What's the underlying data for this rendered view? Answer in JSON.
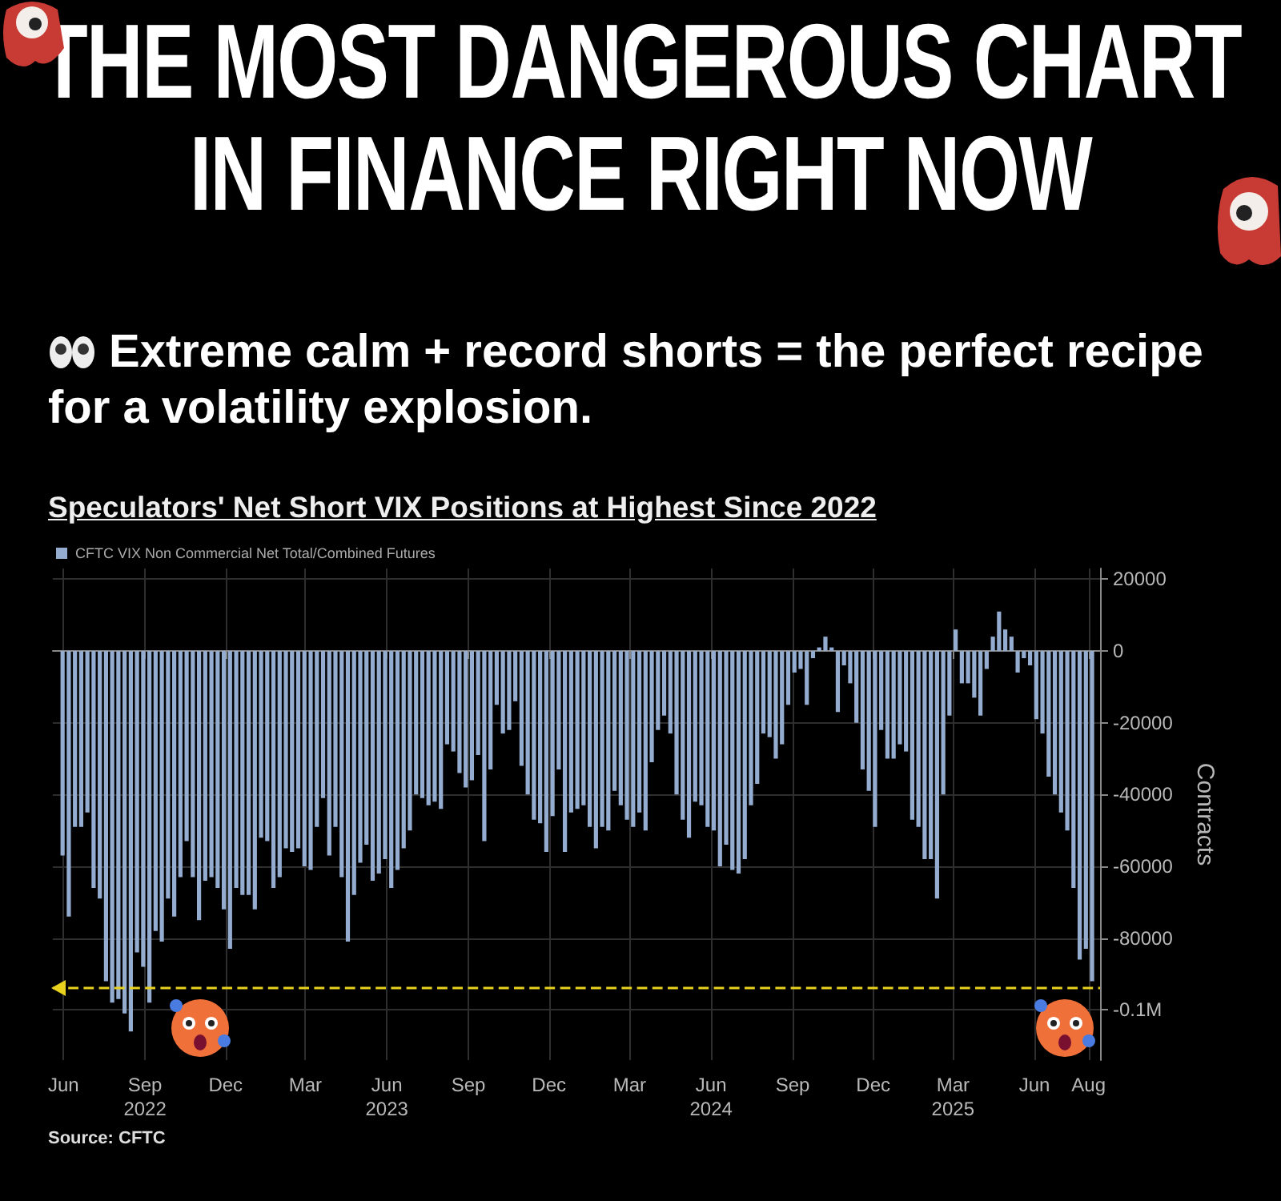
{
  "chart_data": {
    "type": "bar",
    "title": "THE MOST DANGEROUS CHART IN FINANCE RIGHT NOW",
    "subtitle": "Extreme calm + record shorts = the perfect recipe for a volatility explosion.",
    "ylabel": "Contracts",
    "annotations": [
      "Speculators' Net Short VIX Positions at Highest Since 2022",
      "Source: CFTC"
    ],
    "x": [
      "2022-05-31",
      "2022-06-07",
      "2022-06-14",
      "2022-06-21",
      "2022-06-28",
      "2022-07-05",
      "2022-07-12",
      "2022-07-19",
      "2022-07-26",
      "2022-08-02",
      "2022-08-09",
      "2022-08-16",
      "2022-08-23",
      "2022-08-30",
      "2022-09-06",
      "2022-09-13",
      "2022-09-20",
      "2022-09-27",
      "2022-10-04",
      "2022-10-11",
      "2022-10-18",
      "2022-10-25",
      "2022-11-01",
      "2022-11-08",
      "2022-11-15",
      "2022-11-22",
      "2022-11-29",
      "2022-12-06",
      "2022-12-13",
      "2022-12-20",
      "2022-12-27",
      "2023-01-03",
      "2023-01-10",
      "2023-01-17",
      "2023-01-24",
      "2023-01-31",
      "2023-02-07",
      "2023-02-14",
      "2023-02-21",
      "2023-02-28",
      "2023-03-07",
      "2023-03-14",
      "2023-03-21",
      "2023-03-28",
      "2023-04-04",
      "2023-04-11",
      "2023-04-18",
      "2023-04-25",
      "2023-05-02",
      "2023-05-09",
      "2023-05-16",
      "2023-05-23",
      "2023-05-30",
      "2023-06-06",
      "2023-06-13",
      "2023-06-20",
      "2023-06-27",
      "2023-07-04",
      "2023-07-11",
      "2023-07-18",
      "2023-07-25",
      "2023-08-01",
      "2023-08-08",
      "2023-08-15",
      "2023-08-22",
      "2023-08-29",
      "2023-09-05",
      "2023-09-12",
      "2023-09-19",
      "2023-09-26",
      "2023-10-03",
      "2023-10-10",
      "2023-10-17",
      "2023-10-24",
      "2023-10-31",
      "2023-11-07",
      "2023-11-14",
      "2023-11-21",
      "2023-11-28",
      "2023-12-05",
      "2023-12-12",
      "2023-12-19",
      "2023-12-26",
      "2024-01-02",
      "2024-01-09",
      "2024-01-16",
      "2024-01-23",
      "2024-01-30",
      "2024-02-06",
      "2024-02-13",
      "2024-02-20",
      "2024-02-27",
      "2024-03-05",
      "2024-03-12",
      "2024-03-19",
      "2024-03-26",
      "2024-04-02",
      "2024-04-09",
      "2024-04-16",
      "2024-04-23",
      "2024-04-30",
      "2024-05-07",
      "2024-05-14",
      "2024-05-21",
      "2024-05-28",
      "2024-06-04",
      "2024-06-11",
      "2024-06-18",
      "2024-06-25",
      "2024-07-02",
      "2024-07-09",
      "2024-07-16",
      "2024-07-23",
      "2024-07-30",
      "2024-08-06",
      "2024-08-13",
      "2024-08-20",
      "2024-08-27",
      "2024-09-03",
      "2024-09-10",
      "2024-09-17",
      "2024-09-24",
      "2024-10-01",
      "2024-10-08",
      "2024-10-15",
      "2024-10-22",
      "2024-10-29",
      "2024-11-05",
      "2024-11-12",
      "2024-11-19",
      "2024-11-26",
      "2024-12-03",
      "2024-12-10",
      "2024-12-17",
      "2024-12-24",
      "2024-12-31",
      "2025-01-07",
      "2025-01-14",
      "2025-01-21",
      "2025-01-28",
      "2025-02-04",
      "2025-02-11",
      "2025-02-18",
      "2025-02-25",
      "2025-03-04",
      "2025-03-11",
      "2025-03-18",
      "2025-03-25",
      "2025-04-01",
      "2025-04-08",
      "2025-04-15",
      "2025-04-22",
      "2025-04-29",
      "2025-05-06",
      "2025-05-13",
      "2025-05-20",
      "2025-05-27",
      "2025-06-03",
      "2025-06-10",
      "2025-06-17",
      "2025-06-24",
      "2025-07-01",
      "2025-07-08",
      "2025-07-15",
      "2025-07-22",
      "2025-07-29",
      "2025-08-05"
    ],
    "series": [
      {
        "name": "CFTC VIX Non Commercial Net Total/Combined Futures",
        "color": "#93acd0",
        "values": [
          -57000,
          -74000,
          -49000,
          -49000,
          -45000,
          -66000,
          -69000,
          -92000,
          -98000,
          -97000,
          -101000,
          -106000,
          -84000,
          -88000,
          -98000,
          -78000,
          -81000,
          -69000,
          -74000,
          -63000,
          -53000,
          -63000,
          -75000,
          -64000,
          -63000,
          -66000,
          -72000,
          -83000,
          -66000,
          -68000,
          -68000,
          -72000,
          -52000,
          -53000,
          -66000,
          -63000,
          -55000,
          -56000,
          -55000,
          -60000,
          -61000,
          -49000,
          -41000,
          -57000,
          -49000,
          -63000,
          -81000,
          -68000,
          -59000,
          -54000,
          -64000,
          -62000,
          -58000,
          -66000,
          -61000,
          -55000,
          -50000,
          -40000,
          -41000,
          -43000,
          -42000,
          -44000,
          -26000,
          -28000,
          -34000,
          -38000,
          -36000,
          -29000,
          -53000,
          -33000,
          -15000,
          -23000,
          -22000,
          -14000,
          -32000,
          -40000,
          -47000,
          -48000,
          -56000,
          -46000,
          -33000,
          -56000,
          -45000,
          -44000,
          -43000,
          -49000,
          -55000,
          -49000,
          -50000,
          -39000,
          -43000,
          -47000,
          -49000,
          -45000,
          -50000,
          -31000,
          -22000,
          -18000,
          -23000,
          -40000,
          -47000,
          -52000,
          -42000,
          -43000,
          -49000,
          -50000,
          -60000,
          -54000,
          -61000,
          -62000,
          -58000,
          -43000,
          -37000,
          -23000,
          -24000,
          -30000,
          -26000,
          -15000,
          -6000,
          -5000,
          -15000,
          -2000,
          1000,
          4000,
          1000,
          -17000,
          -4000,
          -9000,
          -20000,
          -33000,
          -39000,
          -49000,
          -22000,
          -30000,
          -30000,
          -26000,
          -28000,
          -47000,
          -49000,
          -58000,
          -58000,
          -69000,
          -40000,
          -18000,
          6000,
          -9000,
          -9000,
          -13000,
          -18000,
          -5000,
          4000,
          11000,
          6000,
          4000,
          -6000,
          -2000,
          -4000,
          -19000,
          -23000,
          -35000,
          -40000,
          -45000,
          -50000,
          -66000,
          -86000,
          -83000,
          -92000
        ]
      }
    ],
    "xlim": [
      "2022-05-20",
      "2025-08-14"
    ],
    "xticks": [
      {
        "value": "2022-06-01",
        "label": "Jun"
      },
      {
        "value": "2022-09-01",
        "label": "Sep\n2022"
      },
      {
        "value": "2022-12-01",
        "label": "Dec"
      },
      {
        "value": "2023-03-01",
        "label": "Mar"
      },
      {
        "value": "2023-06-01",
        "label": "Jun\n2023"
      },
      {
        "value": "2023-09-01",
        "label": "Sep"
      },
      {
        "value": "2023-12-01",
        "label": "Dec"
      },
      {
        "value": "2024-03-01",
        "label": "Mar"
      },
      {
        "value": "2024-06-01",
        "label": "Jun\n2024"
      },
      {
        "value": "2024-09-01",
        "label": "Sep"
      },
      {
        "value": "2024-12-01",
        "label": "Dec"
      },
      {
        "value": "2025-03-01",
        "label": "Mar\n2025"
      },
      {
        "value": "2025-06-01",
        "label": "Jun"
      },
      {
        "value": "2025-08-01",
        "label": "Aug"
      }
    ],
    "ylim": [
      -114000,
      23000
    ],
    "yticks": [
      20000,
      0,
      -20000,
      -40000,
      -60000,
      -80000,
      {
        "value": -100000,
        "label": "-0.1M"
      }
    ],
    "ref_lines": [
      {
        "axis": "y",
        "value": -94000,
        "color": "#e8d21d",
        "line_style": "dashed"
      }
    ],
    "grid": true,
    "legend": "top left"
  }
}
